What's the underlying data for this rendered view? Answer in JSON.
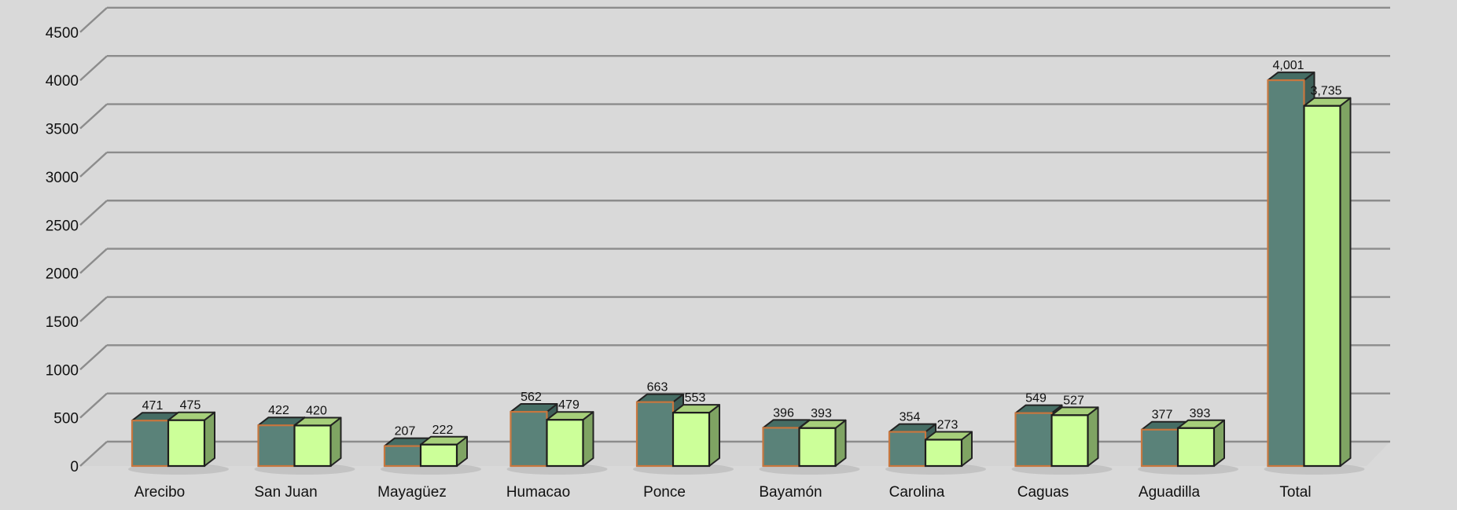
{
  "chart_data": {
    "type": "bar",
    "categories": [
      "Arecibo",
      "San Juan",
      "Mayagüez",
      "Humacao",
      "Ponce",
      "Bayamón",
      "Carolina",
      "Caguas",
      "Aguadilla",
      "Total"
    ],
    "series": [
      {
        "values": [
          471,
          422,
          207,
          562,
          663,
          396,
          354,
          549,
          377,
          4001
        ],
        "labels": [
          "471",
          "422",
          "207",
          "562",
          "663",
          "396",
          "354",
          "549",
          "377",
          "4,001"
        ],
        "color": "#5a8279"
      },
      {
        "values": [
          475,
          420,
          222,
          479,
          553,
          393,
          273,
          527,
          393,
          3735
        ],
        "labels": [
          "475",
          "420",
          "222",
          "479",
          "553",
          "393",
          "273",
          "527",
          "393",
          "3,735"
        ],
        "color": "#ccff99"
      }
    ],
    "yticks": [
      0,
      500,
      1000,
      1500,
      2000,
      2500,
      3000,
      3500,
      4000,
      4500
    ],
    "ylim": [
      0,
      4500
    ],
    "grid": true,
    "legend": "none",
    "title": "",
    "xlabel": "",
    "ylabel": ""
  }
}
